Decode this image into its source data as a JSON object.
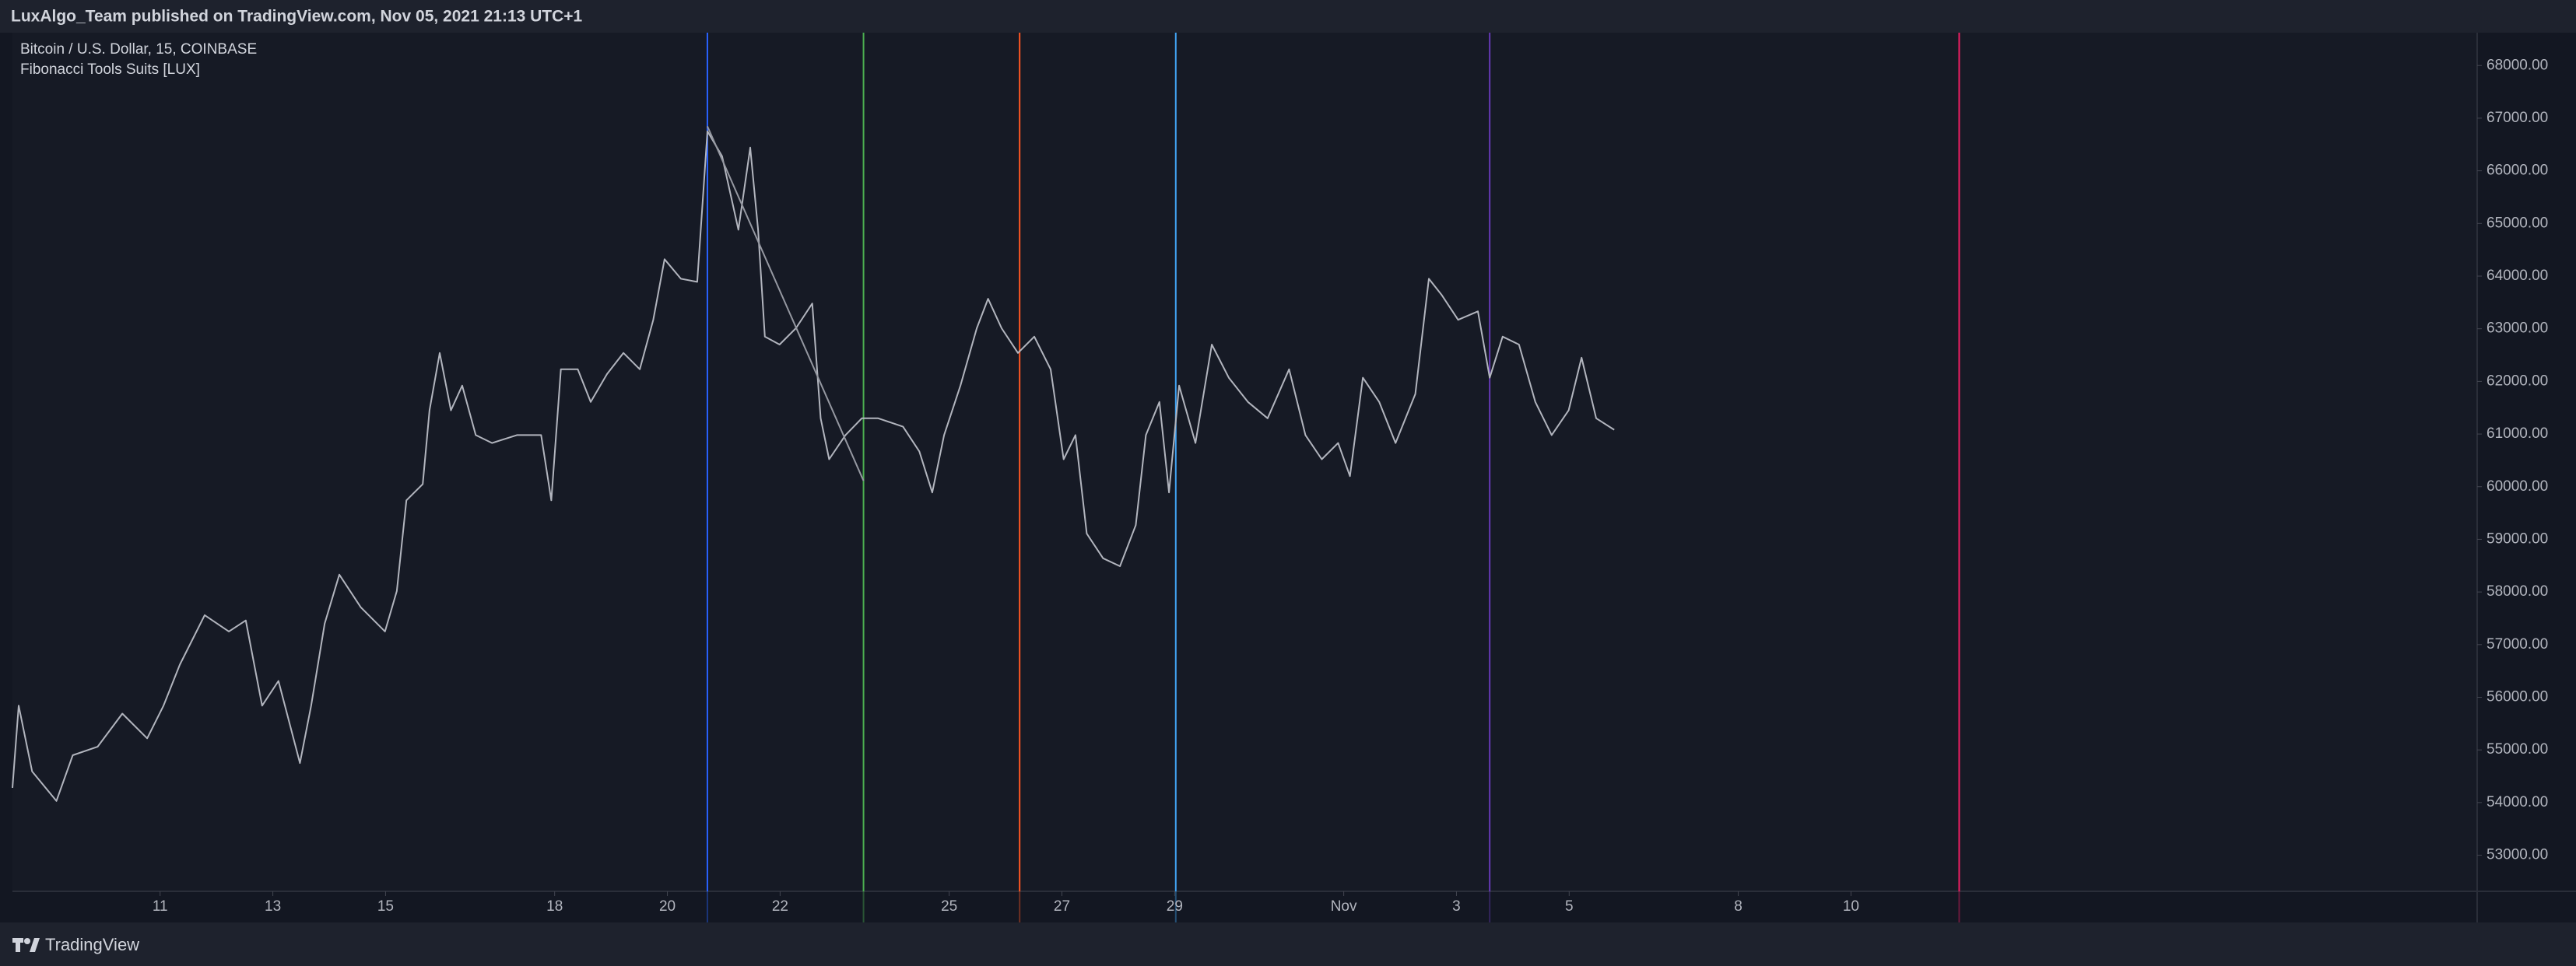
{
  "header": {
    "text": "LuxAlgo_Team published on TradingView.com, Nov 05, 2021 21:13 UTC+1"
  },
  "footer": {
    "brand": "TradingView"
  },
  "chart_data": {
    "type": "line",
    "title": "Bitcoin / U.S. Dollar, 15, COINBASE",
    "subtitle": "Fibonacci Tools Suits [LUX]",
    "xlim": [
      8.38,
      52.11
    ],
    "ylim": [
      52314,
      68624
    ],
    "xticks": [
      11,
      13,
      15,
      18,
      20,
      22,
      25,
      27,
      29,
      {
        "value": 32,
        "label": "Nov"
      },
      {
        "value": 34,
        "label": "3"
      },
      {
        "value": 36,
        "label": "5"
      },
      {
        "value": 39,
        "label": "8"
      },
      {
        "value": 41,
        "label": "10"
      }
    ],
    "yticks": [
      {
        "value": 53000,
        "label": "53000.00"
      },
      {
        "value": 54000,
        "label": "54000.00"
      },
      {
        "value": 55000,
        "label": "55000.00"
      },
      {
        "value": 56000,
        "label": "56000.00"
      },
      {
        "value": 57000,
        "label": "57000.00"
      },
      {
        "value": 58000,
        "label": "58000.00"
      },
      {
        "value": 59000,
        "label": "59000.00"
      },
      {
        "value": 60000,
        "label": "60000.00"
      },
      {
        "value": 61000,
        "label": "61000.00"
      },
      {
        "value": 62000,
        "label": "62000.00"
      },
      {
        "value": 63000,
        "label": "63000.00"
      },
      {
        "value": 64000,
        "label": "64000.00"
      },
      {
        "value": 65000,
        "label": "65000.00"
      },
      {
        "value": 66000,
        "label": "66000.00"
      },
      {
        "value": 67000,
        "label": "67000.00"
      },
      {
        "value": 68000,
        "label": "68000.00"
      }
    ],
    "series": [
      {
        "color": "#b2b5be",
        "x": [
          8.38,
          8.49,
          8.73,
          9.16,
          9.45,
          9.89,
          10.33,
          10.77,
          11.06,
          11.35,
          11.79,
          12.22,
          12.52,
          12.81,
          13.1,
          13.48,
          13.68,
          13.92,
          14.18,
          14.56,
          14.99,
          15.2,
          15.37,
          15.66,
          15.78,
          15.96,
          16.16,
          16.36,
          16.6,
          16.89,
          17.33,
          17.76,
          17.94,
          18.11,
          18.41,
          18.64,
          18.93,
          19.22,
          19.51,
          19.75,
          19.95,
          20.24,
          20.53,
          20.71,
          20.97,
          21.26,
          21.47,
          21.61,
          21.73,
          21.99,
          22.28,
          22.57,
          22.72,
          22.87,
          23.16,
          23.45,
          23.74,
          24.18,
          24.47,
          24.7,
          24.91,
          25.2,
          25.49,
          25.69,
          25.93,
          26.22,
          26.51,
          26.8,
          27.03,
          27.24,
          27.44,
          27.73,
          28.03,
          28.31,
          28.49,
          28.73,
          28.9,
          29.08,
          29.37,
          29.66,
          29.96,
          30.3,
          30.65,
          31.03,
          31.32,
          31.61,
          31.9,
          32.11,
          32.34,
          32.63,
          32.92,
          33.27,
          33.51,
          33.74,
          34.03,
          34.38,
          34.59,
          34.82,
          35.11,
          35.4,
          35.69,
          35.99,
          36.22,
          36.48,
          36.8
        ],
        "values": [
          54280,
          55840,
          54590,
          54030,
          54900,
          55060,
          55690,
          55220,
          55840,
          56620,
          57560,
          57250,
          57460,
          55840,
          56310,
          54750,
          55840,
          57400,
          58330,
          57710,
          57250,
          58020,
          59740,
          60050,
          61450,
          62540,
          61450,
          61920,
          60980,
          60830,
          60980,
          60980,
          59740,
          62230,
          62230,
          61610,
          62140,
          62540,
          62230,
          63170,
          64320,
          63950,
          63890,
          66750,
          66280,
          64880,
          66440,
          64880,
          62850,
          62700,
          63010,
          63480,
          61300,
          60520,
          60980,
          61300,
          61300,
          61140,
          60670,
          59890,
          60980,
          61920,
          63010,
          63570,
          63010,
          62540,
          62850,
          62230,
          60520,
          60980,
          59110,
          58640,
          58490,
          59270,
          60980,
          61610,
          59890,
          61920,
          60830,
          62700,
          62070,
          61610,
          61300,
          62230,
          60980,
          60520,
          60830,
          60200,
          62070,
          61610,
          60830,
          61760,
          63950,
          63640,
          63170,
          63330,
          62070,
          62850,
          62700,
          61610,
          60980,
          61450,
          62450,
          61300,
          61080
        ]
      }
    ],
    "trendline": {
      "color": "#9598a1",
      "x": [
        20.71,
        23.48
      ],
      "values": [
        66846,
        60111
      ]
    },
    "time_zones": [
      {
        "x": 20.71,
        "color": "#2962ff"
      },
      {
        "x": 23.48,
        "color": "#4caf50"
      },
      {
        "x": 26.25,
        "color": "#ff5722"
      },
      {
        "x": 29.02,
        "color": "#42a5f5"
      },
      {
        "x": 34.59,
        "color": "#673ab7"
      },
      {
        "x": 42.92,
        "color": "#e91e63"
      }
    ]
  }
}
